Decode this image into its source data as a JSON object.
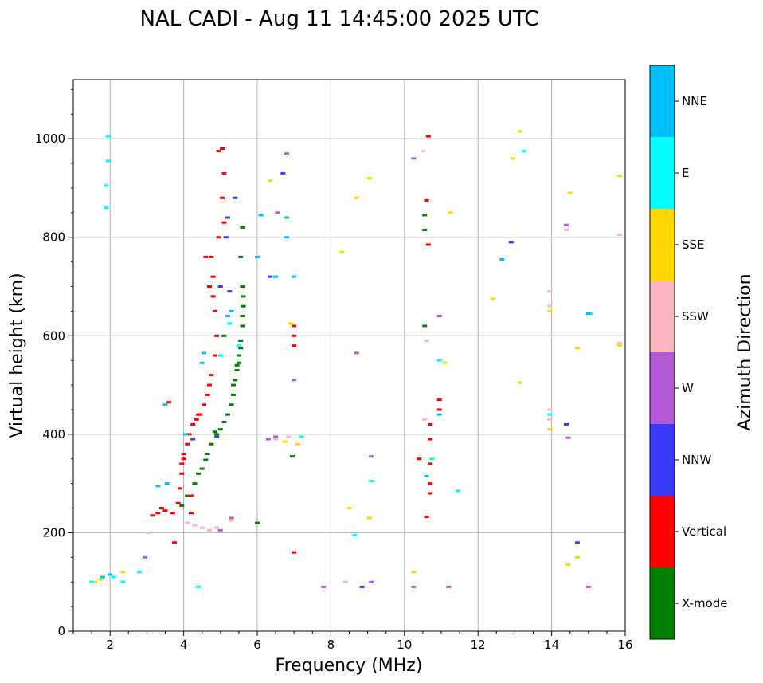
{
  "chart_data": {
    "type": "scatter",
    "title": "NAL CADI - Aug 11 14:45:00 2025 UTC",
    "xlabel": "Frequency (MHz)",
    "ylabel": "Virtual height (km)",
    "xlim": [
      1,
      16
    ],
    "ylim": [
      0,
      1120
    ],
    "xticks": [
      2,
      4,
      6,
      8,
      10,
      12,
      14,
      16
    ],
    "yticks": [
      0,
      200,
      400,
      600,
      800,
      1000
    ],
    "grid": true,
    "colorbar": {
      "title": "Azimuth Direction",
      "categories": [
        {
          "name": "X-mode",
          "color": "#008000"
        },
        {
          "name": "Vertical",
          "color": "#ff0000"
        },
        {
          "name": "NNW",
          "color": "#3a3aff"
        },
        {
          "name": "W",
          "color": "#b55ad7"
        },
        {
          "name": "SSW",
          "color": "#ffb6c1"
        },
        {
          "name": "SSE",
          "color": "#ffd700"
        },
        {
          "name": "E",
          "color": "#00ffff"
        },
        {
          "name": "NNE",
          "color": "#00bfff"
        }
      ]
    },
    "series": [
      {
        "name": "X-mode",
        "points": [
          [
            3.95,
            255
          ],
          [
            4.1,
            275
          ],
          [
            4.3,
            300
          ],
          [
            4.4,
            320
          ],
          [
            4.6,
            348
          ],
          [
            4.75,
            380
          ],
          [
            4.85,
            405
          ],
          [
            5.1,
            425
          ],
          [
            5.2,
            440
          ],
          [
            5.3,
            460
          ],
          [
            5.35,
            480
          ],
          [
            5.4,
            510
          ],
          [
            5.45,
            540
          ],
          [
            5.5,
            560
          ],
          [
            5.55,
            590
          ],
          [
            5.6,
            620
          ],
          [
            5.62,
            660
          ],
          [
            5.6,
            700
          ],
          [
            5.55,
            760
          ],
          [
            5.6,
            820
          ],
          [
            6.0,
            220
          ],
          [
            10.55,
            845
          ],
          [
            10.55,
            815
          ],
          [
            10.55,
            620
          ],
          [
            6.95,
            355
          ],
          [
            5.1,
            600
          ],
          [
            5.35,
            500
          ],
          [
            5.45,
            530
          ],
          [
            5.5,
            545
          ],
          [
            5.55,
            575
          ],
          [
            5.6,
            640
          ],
          [
            5.62,
            680
          ],
          [
            5.0,
            410
          ],
          [
            4.9,
            400
          ],
          [
            4.65,
            360
          ],
          [
            4.5,
            330
          ]
        ]
      },
      {
        "name": "Vertical",
        "points": [
          [
            3.15,
            235
          ],
          [
            3.3,
            240
          ],
          [
            3.5,
            245
          ],
          [
            3.7,
            240
          ],
          [
            3.85,
            260
          ],
          [
            3.9,
            290
          ],
          [
            3.95,
            320
          ],
          [
            4.0,
            350
          ],
          [
            4.1,
            380
          ],
          [
            4.15,
            400
          ],
          [
            4.25,
            420
          ],
          [
            4.35,
            430
          ],
          [
            4.45,
            440
          ],
          [
            4.55,
            460
          ],
          [
            4.65,
            480
          ],
          [
            4.7,
            500
          ],
          [
            4.75,
            520
          ],
          [
            4.85,
            560
          ],
          [
            4.9,
            600
          ],
          [
            4.85,
            650
          ],
          [
            4.8,
            680
          ],
          [
            4.8,
            720
          ],
          [
            4.75,
            760
          ],
          [
            4.95,
            800
          ],
          [
            5.1,
            830
          ],
          [
            5.05,
            880
          ],
          [
            5.1,
            930
          ],
          [
            4.95,
            975
          ],
          [
            5.05,
            980
          ],
          [
            4.2,
            275
          ],
          [
            4.2,
            240
          ],
          [
            3.75,
            180
          ],
          [
            7.0,
            600
          ],
          [
            7.0,
            620
          ],
          [
            7.0,
            580
          ],
          [
            7.0,
            160
          ],
          [
            10.7,
            420
          ],
          [
            10.7,
            390
          ],
          [
            10.7,
            340
          ],
          [
            10.7,
            300
          ],
          [
            10.7,
            280
          ],
          [
            10.6,
            232
          ],
          [
            10.6,
            875
          ],
          [
            10.65,
            785
          ],
          [
            10.65,
            1005
          ],
          [
            10.4,
            350
          ],
          [
            10.95,
            470
          ],
          [
            10.95,
            450
          ],
          [
            3.6,
            465
          ],
          [
            3.4,
            250
          ],
          [
            4.6,
            760
          ],
          [
            4.7,
            700
          ],
          [
            4.4,
            440
          ],
          [
            4.0,
            360
          ],
          [
            3.95,
            340
          ]
        ]
      },
      {
        "name": "NNW",
        "points": [
          [
            5.2,
            840
          ],
          [
            5.15,
            800
          ],
          [
            5.4,
            880
          ],
          [
            6.7,
            930
          ],
          [
            8.85,
            90
          ],
          [
            12.9,
            790
          ],
          [
            14.4,
            420
          ],
          [
            14.7,
            180
          ],
          [
            4.9,
            395
          ],
          [
            5.25,
            690
          ],
          [
            6.35,
            720
          ],
          [
            4.25,
            390
          ],
          [
            5.0,
            700
          ]
        ]
      },
      {
        "name": "W",
        "points": [
          [
            6.55,
            850
          ],
          [
            6.8,
            970
          ],
          [
            7.0,
            510
          ],
          [
            7.8,
            90
          ],
          [
            8.7,
            565
          ],
          [
            9.1,
            355
          ],
          [
            9.1,
            100
          ],
          [
            10.25,
            960
          ],
          [
            10.25,
            90
          ],
          [
            10.95,
            640
          ],
          [
            11.2,
            90
          ],
          [
            14.4,
            825
          ],
          [
            14.45,
            393
          ],
          [
            15.0,
            90
          ],
          [
            6.3,
            390
          ],
          [
            6.5,
            395
          ],
          [
            5.3,
            230
          ],
          [
            5.0,
            205
          ],
          [
            4.7,
            205
          ],
          [
            2.95,
            150
          ]
        ]
      },
      {
        "name": "SSW",
        "points": [
          [
            4.3,
            215
          ],
          [
            4.5,
            210
          ],
          [
            4.7,
            205
          ],
          [
            4.9,
            210
          ],
          [
            5.3,
            225
          ],
          [
            6.5,
            390
          ],
          [
            6.85,
            395
          ],
          [
            10.55,
            430
          ],
          [
            10.6,
            590
          ],
          [
            10.5,
            975
          ],
          [
            13.95,
            690
          ],
          [
            13.95,
            660
          ],
          [
            13.95,
            450
          ],
          [
            13.95,
            430
          ],
          [
            14.4,
            815
          ],
          [
            15.85,
            805
          ],
          [
            15.85,
            585
          ],
          [
            3.05,
            200
          ],
          [
            8.4,
            100
          ],
          [
            4.1,
            220
          ]
        ]
      },
      {
        "name": "SSE",
        "points": [
          [
            1.6,
            100
          ],
          [
            1.75,
            105
          ],
          [
            2.35,
            120
          ],
          [
            6.35,
            915
          ],
          [
            6.9,
            625
          ],
          [
            7.1,
            380
          ],
          [
            8.3,
            770
          ],
          [
            8.5,
            250
          ],
          [
            8.7,
            880
          ],
          [
            9.05,
            920
          ],
          [
            9.05,
            230
          ],
          [
            10.25,
            120
          ],
          [
            11.25,
            850
          ],
          [
            11.1,
            545
          ],
          [
            12.4,
            675
          ],
          [
            12.95,
            960
          ],
          [
            13.15,
            1015
          ],
          [
            13.15,
            505
          ],
          [
            13.95,
            650
          ],
          [
            14.45,
            135
          ],
          [
            14.5,
            890
          ],
          [
            14.7,
            150
          ],
          [
            14.7,
            575
          ],
          [
            15.85,
            925
          ],
          [
            15.85,
            580
          ],
          [
            13.95,
            410
          ],
          [
            6.75,
            385
          ]
        ]
      },
      {
        "name": "E",
        "points": [
          [
            1.95,
            1005
          ],
          [
            1.95,
            955
          ],
          [
            1.9,
            905
          ],
          [
            1.9,
            860
          ],
          [
            2.1,
            110
          ],
          [
            2.35,
            100
          ],
          [
            4.4,
            90
          ],
          [
            7.2,
            395
          ],
          [
            9.1,
            305
          ],
          [
            8.65,
            195
          ],
          [
            11.45,
            285
          ],
          [
            13.25,
            975
          ],
          [
            15.05,
            645
          ],
          [
            10.75,
            350
          ],
          [
            10.95,
            550
          ],
          [
            5.0,
            560
          ],
          [
            5.5,
            580
          ],
          [
            5.25,
            625
          ],
          [
            1.5,
            100
          ],
          [
            2.8,
            120
          ],
          [
            13.95,
            440
          ]
        ]
      },
      {
        "name": "NNE",
        "points": [
          [
            3.3,
            295
          ],
          [
            3.55,
            300
          ],
          [
            4.5,
            545
          ],
          [
            4.55,
            565
          ],
          [
            5.3,
            650
          ],
          [
            6.1,
            845
          ],
          [
            6.5,
            720
          ],
          [
            6.8,
            840
          ],
          [
            7.0,
            720
          ],
          [
            12.65,
            755
          ],
          [
            15.0,
            645
          ],
          [
            10.6,
            315
          ],
          [
            10.95,
            440
          ],
          [
            4.05,
            400
          ],
          [
            3.5,
            460
          ],
          [
            1.8,
            110
          ],
          [
            2.0,
            115
          ],
          [
            5.2,
            640
          ],
          [
            6.8,
            800
          ],
          [
            6.0,
            760
          ]
        ]
      }
    ]
  }
}
